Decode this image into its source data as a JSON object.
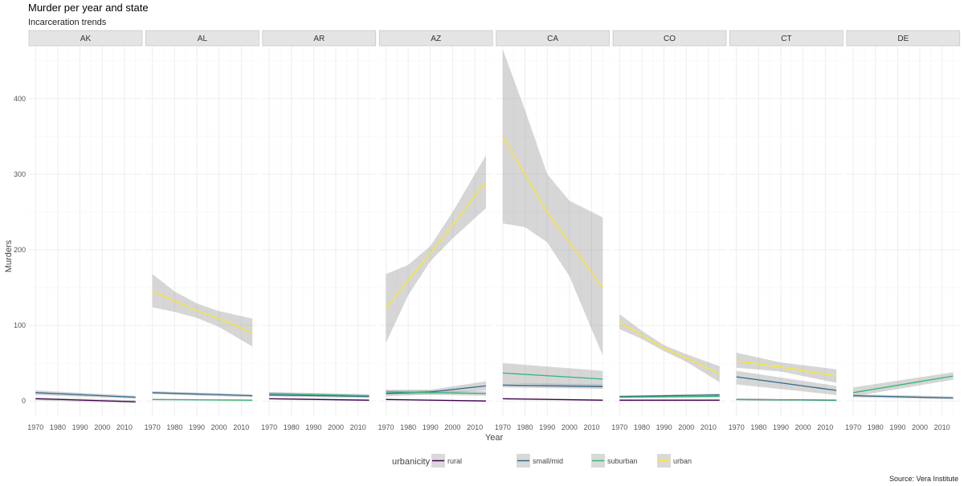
{
  "chart_data": {
    "type": "line",
    "title": "Murder per year and state",
    "subtitle": "Incarceration trends",
    "xlabel": "Year",
    "ylabel": "Murders",
    "caption": "Source: Vera Institute",
    "xlim": [
      1967,
      2018
    ],
    "ylim": [
      -20,
      470
    ],
    "x_ticks": [
      1970,
      1980,
      1990,
      2000,
      2010
    ],
    "y_ticks": [
      0,
      100,
      200,
      300,
      400
    ],
    "grid": true,
    "legend_position": "bottom",
    "legend_title": "urbanicity",
    "series_style": [
      {
        "name": "rural",
        "color": "#440154"
      },
      {
        "name": "small/mid",
        "color": "#31688e"
      },
      {
        "name": "suburban",
        "color": "#35b779"
      },
      {
        "name": "urban",
        "color": "#fde725"
      }
    ],
    "panels": [
      {
        "state": "AK",
        "series": [
          {
            "name": "rural",
            "x": [
              1970,
              2015
            ],
            "y": [
              3,
              -1
            ],
            "lo": [
              1,
              -3
            ],
            "hi": [
              5,
              1
            ]
          },
          {
            "name": "small/mid",
            "x": [
              1970,
              2015
            ],
            "y": [
              11,
              5
            ],
            "lo": [
              8,
              3
            ],
            "hi": [
              14,
              7
            ]
          }
        ]
      },
      {
        "state": "AL",
        "series": [
          {
            "name": "small/mid",
            "x": [
              1970,
              2015
            ],
            "y": [
              11,
              7
            ],
            "lo": [
              9,
              5
            ],
            "hi": [
              13,
              9
            ]
          },
          {
            "name": "suburban",
            "x": [
              1970,
              2015
            ],
            "y": [
              2,
              1
            ],
            "lo": [
              1,
              0
            ],
            "hi": [
              3,
              2
            ]
          },
          {
            "name": "urban",
            "x": [
              1970,
              1980,
              1990,
              2000,
              2015
            ],
            "y": [
              146,
              132,
              120,
              109,
              90
            ],
            "lo": [
              124,
              118,
              110,
              98,
              72
            ],
            "hi": [
              168,
              145,
              129,
              119,
              109
            ]
          }
        ]
      },
      {
        "state": "AR",
        "series": [
          {
            "name": "rural",
            "x": [
              1970,
              2015
            ],
            "y": [
              3,
              1
            ],
            "lo": [
              2,
              0
            ],
            "hi": [
              4,
              2
            ]
          },
          {
            "name": "small/mid",
            "x": [
              1970,
              2015
            ],
            "y": [
              8,
              6
            ],
            "lo": [
              6,
              4
            ],
            "hi": [
              10,
              8
            ]
          },
          {
            "name": "suburban",
            "x": [
              1970,
              2015
            ],
            "y": [
              10,
              7
            ],
            "lo": [
              8,
              5
            ],
            "hi": [
              12,
              9
            ]
          }
        ]
      },
      {
        "state": "AZ",
        "series": [
          {
            "name": "rural",
            "x": [
              1970,
              2015
            ],
            "y": [
              2,
              0
            ],
            "lo": [
              1,
              -1
            ],
            "hi": [
              3,
              1
            ]
          },
          {
            "name": "small/mid",
            "x": [
              1970,
              1990,
              2015
            ],
            "y": [
              10,
              12,
              20
            ],
            "lo": [
              6,
              9,
              14
            ],
            "hi": [
              14,
              15,
              26
            ]
          },
          {
            "name": "suburban",
            "x": [
              1970,
              2015
            ],
            "y": [
              12,
              10
            ],
            "lo": [
              9,
              7
            ],
            "hi": [
              15,
              13
            ]
          },
          {
            "name": "urban",
            "x": [
              1970,
              1980,
              1990,
              2000,
              2015
            ],
            "y": [
              123,
              160,
              195,
              233,
              290
            ],
            "lo": [
              77,
              140,
              185,
              215,
              255
            ],
            "hi": [
              168,
              180,
              205,
              250,
              325
            ]
          }
        ]
      },
      {
        "state": "CA",
        "series": [
          {
            "name": "rural",
            "x": [
              1970,
              2015
            ],
            "y": [
              3,
              1
            ],
            "lo": [
              2,
              0
            ],
            "hi": [
              4,
              2
            ]
          },
          {
            "name": "small/mid",
            "x": [
              1970,
              2015
            ],
            "y": [
              21,
              19
            ],
            "lo": [
              18,
              16
            ],
            "hi": [
              24,
              22
            ]
          },
          {
            "name": "suburban",
            "x": [
              1970,
              2015
            ],
            "y": [
              37,
              29
            ],
            "lo": [
              24,
              18
            ],
            "hi": [
              50,
              40
            ]
          },
          {
            "name": "urban",
            "x": [
              1970,
              1980,
              1990,
              2000,
              2015
            ],
            "y": [
              350,
              300,
              250,
              210,
              150
            ],
            "lo": [
              235,
              230,
              210,
              165,
              60
            ],
            "hi": [
              465,
              385,
              300,
              265,
              243
            ]
          }
        ]
      },
      {
        "state": "CO",
        "series": [
          {
            "name": "rural",
            "x": [
              1970,
              2015
            ],
            "y": [
              1,
              1
            ],
            "lo": [
              0,
              0
            ],
            "hi": [
              2,
              2
            ]
          },
          {
            "name": "small/mid",
            "x": [
              1970,
              2015
            ],
            "y": [
              6,
              8
            ],
            "lo": [
              5,
              6
            ],
            "hi": [
              7,
              10
            ]
          },
          {
            "name": "suburban",
            "x": [
              1970,
              2015
            ],
            "y": [
              5,
              6
            ],
            "lo": [
              4,
              5
            ],
            "hi": [
              6,
              7
            ]
          },
          {
            "name": "urban",
            "x": [
              1970,
              1980,
              1990,
              2000,
              2015
            ],
            "y": [
              104,
              87,
              70,
              57,
              36
            ],
            "lo": [
              95,
              82,
              66,
              52,
              25
            ],
            "hi": [
              115,
              93,
              74,
              62,
              46
            ]
          }
        ]
      },
      {
        "state": "CT",
        "series": [
          {
            "name": "rural",
            "x": [
              1970,
              2015
            ],
            "y": [
              2,
              1
            ],
            "lo": [
              1,
              0
            ],
            "hi": [
              3,
              2
            ]
          },
          {
            "name": "small/mid",
            "x": [
              1970,
              2015
            ],
            "y": [
              32,
              14
            ],
            "lo": [
              22,
              8
            ],
            "hi": [
              40,
              20
            ]
          },
          {
            "name": "suburban",
            "x": [
              1970,
              2015
            ],
            "y": [
              2,
              1
            ],
            "lo": [
              1,
              0
            ],
            "hi": [
              3,
              2
            ]
          },
          {
            "name": "urban",
            "x": [
              1970,
              1990,
              2015
            ],
            "y": [
              53,
              45,
              33
            ],
            "lo": [
              44,
              39,
              24
            ],
            "hi": [
              64,
              51,
              42
            ]
          }
        ]
      },
      {
        "state": "DE",
        "series": [
          {
            "name": "small/mid",
            "x": [
              1970,
              2015
            ],
            "y": [
              7,
              4
            ],
            "lo": [
              5,
              2
            ],
            "hi": [
              9,
              6
            ]
          },
          {
            "name": "suburban",
            "x": [
              1970,
              2015
            ],
            "y": [
              11,
              33
            ],
            "lo": [
              6,
              28
            ],
            "hi": [
              18,
              38
            ]
          }
        ]
      }
    ]
  }
}
